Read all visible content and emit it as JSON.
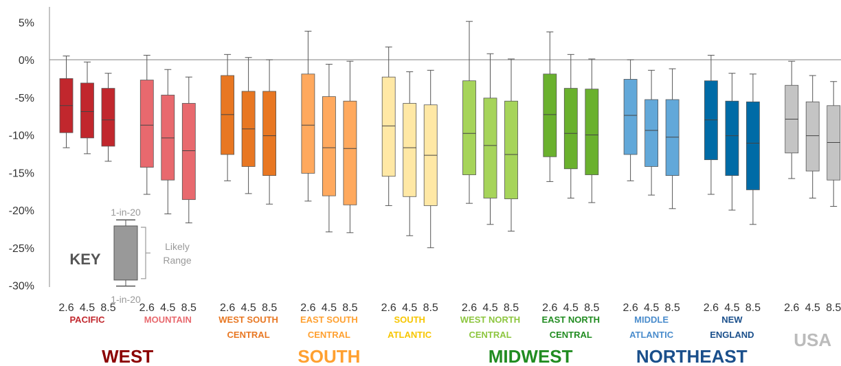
{
  "chart_data": {
    "type": "boxplot",
    "ylim": [
      -30,
      7
    ],
    "y_ticks": [
      5,
      0,
      -5,
      -10,
      -15,
      -20,
      -25,
      -30
    ],
    "y_tick_labels": [
      "5%",
      "0%",
      "-5%",
      "-10%",
      "-15%",
      "-20%",
      "-25%",
      "-30%"
    ],
    "scenarios": [
      "2.6",
      "4.5",
      "8.5"
    ],
    "regions": [
      {
        "name": "PACIFIC",
        "lines": [
          "PACIFIC"
        ],
        "color": "#c1272d",
        "label_color": "#c1272d",
        "boxes": [
          {
            "scenario": "2.6",
            "whisker_high": 0.5,
            "q3": -2.5,
            "median": -6.1,
            "q1": -9.7,
            "whisker_low": -11.7
          },
          {
            "scenario": "4.5",
            "whisker_high": -0.3,
            "q3": -3.1,
            "median": -6.9,
            "q1": -10.4,
            "whisker_low": -12.5
          },
          {
            "scenario": "8.5",
            "whisker_high": -1.8,
            "q3": -3.8,
            "median": -8.0,
            "q1": -11.5,
            "whisker_low": -13.5
          }
        ]
      },
      {
        "name": "MOUNTAIN",
        "lines": [
          "MOUNTAIN"
        ],
        "color": "#e8696e",
        "label_color": "#e8696e",
        "boxes": [
          {
            "scenario": "2.6",
            "whisker_high": 0.6,
            "q3": -2.7,
            "median": -8.7,
            "q1": -14.3,
            "whisker_low": -17.9
          },
          {
            "scenario": "4.5",
            "whisker_high": -1.3,
            "q3": -4.7,
            "median": -10.4,
            "q1": -16.0,
            "whisker_low": -20.5
          },
          {
            "scenario": "8.5",
            "whisker_high": -2.3,
            "q3": -5.8,
            "median": -12.1,
            "q1": -18.6,
            "whisker_low": -21.7
          }
        ]
      },
      {
        "name": "WEST SOUTH CENTRAL",
        "lines": [
          "WEST SOUTH",
          "CENTRAL"
        ],
        "color": "#e87722",
        "label_color": "#e87722",
        "boxes": [
          {
            "scenario": "2.6",
            "whisker_high": 0.7,
            "q3": -2.1,
            "median": -7.3,
            "q1": -12.6,
            "whisker_low": -16.1
          },
          {
            "scenario": "4.5",
            "whisker_high": 0.3,
            "q3": -4.2,
            "median": -9.2,
            "q1": -14.2,
            "whisker_low": -17.8
          },
          {
            "scenario": "8.5",
            "whisker_high": 0.0,
            "q3": -4.2,
            "median": -10.1,
            "q1": -15.4,
            "whisker_low": -19.2
          }
        ]
      },
      {
        "name": "EAST SOUTH CENTRAL",
        "lines": [
          "EAST SOUTH",
          "CENTRAL"
        ],
        "color": "#ffa95e",
        "label_color": "#ffa030",
        "boxes": [
          {
            "scenario": "2.6",
            "whisker_high": 3.8,
            "q3": -1.9,
            "median": -8.7,
            "q1": -15.1,
            "whisker_low": -18.8
          },
          {
            "scenario": "4.5",
            "whisker_high": -0.6,
            "q3": -4.9,
            "median": -11.7,
            "q1": -18.1,
            "whisker_low": -22.9
          },
          {
            "scenario": "8.5",
            "whisker_high": -0.2,
            "q3": -5.5,
            "median": -11.8,
            "q1": -19.3,
            "whisker_low": -23.0
          }
        ]
      },
      {
        "name": "SOUTH ATLANTIC",
        "lines": [
          "SOUTH",
          "ATLANTIC"
        ],
        "color": "#ffe8a5",
        "label_color": "#f7c600",
        "boxes": [
          {
            "scenario": "2.6",
            "whisker_high": 1.7,
            "q3": -2.3,
            "median": -8.8,
            "q1": -15.5,
            "whisker_low": -19.4
          },
          {
            "scenario": "4.5",
            "whisker_high": -1.6,
            "q3": -5.8,
            "median": -11.7,
            "q1": -18.2,
            "whisker_low": -23.4
          },
          {
            "scenario": "8.5",
            "whisker_high": -1.4,
            "q3": -6.0,
            "median": -12.7,
            "q1": -19.4,
            "whisker_low": -25.0
          }
        ]
      },
      {
        "name": "WEST NORTH CENTRAL",
        "lines": [
          "WEST NORTH",
          "CENTRAL"
        ],
        "color": "#a6d45a",
        "label_color": "#8dc63f",
        "boxes": [
          {
            "scenario": "2.6",
            "whisker_high": 5.1,
            "q3": -2.8,
            "median": -9.8,
            "q1": -15.3,
            "whisker_low": -19.1
          },
          {
            "scenario": "4.5",
            "whisker_high": 0.8,
            "q3": -5.1,
            "median": -11.4,
            "q1": -18.4,
            "whisker_low": -21.9
          },
          {
            "scenario": "8.5",
            "whisker_high": 0.1,
            "q3": -5.5,
            "median": -12.6,
            "q1": -18.5,
            "whisker_low": -22.8
          }
        ]
      },
      {
        "name": "EAST NORTH CENTRAL",
        "lines": [
          "EAST NORTH",
          "CENTRAL"
        ],
        "color": "#6ab12e",
        "label_color": "#218c21",
        "boxes": [
          {
            "scenario": "2.6",
            "whisker_high": 3.7,
            "q3": -1.9,
            "median": -7.3,
            "q1": -12.9,
            "whisker_low": -16.2
          },
          {
            "scenario": "4.5",
            "whisker_high": 0.7,
            "q3": -3.8,
            "median": -9.8,
            "q1": -14.5,
            "whisker_low": -18.4
          },
          {
            "scenario": "8.5",
            "whisker_high": 0.1,
            "q3": -3.9,
            "median": -10.0,
            "q1": -15.3,
            "whisker_low": -19.0
          }
        ]
      },
      {
        "name": "MIDDLE ATLANTIC",
        "lines": [
          "MIDDLE",
          "ATLANTIC"
        ],
        "color": "#62a8d9",
        "label_color": "#4a8ccc",
        "boxes": [
          {
            "scenario": "2.6",
            "whisker_high": 0.0,
            "q3": -2.6,
            "median": -7.4,
            "q1": -12.6,
            "whisker_low": -16.1
          },
          {
            "scenario": "4.5",
            "whisker_high": -1.4,
            "q3": -5.3,
            "median": -9.4,
            "q1": -14.2,
            "whisker_low": -18.0
          },
          {
            "scenario": "8.5",
            "whisker_high": -1.2,
            "q3": -5.3,
            "median": -10.3,
            "q1": -15.4,
            "whisker_low": -19.8
          }
        ]
      },
      {
        "name": "NEW ENGLAND",
        "lines": [
          "NEW",
          "ENGLAND"
        ],
        "color": "#006ba6",
        "label_color": "#1a4f8b",
        "boxes": [
          {
            "scenario": "2.6",
            "whisker_high": 0.6,
            "q3": -2.8,
            "median": -8.0,
            "q1": -13.3,
            "whisker_low": -17.9
          },
          {
            "scenario": "4.5",
            "whisker_high": -1.8,
            "q3": -5.5,
            "median": -10.1,
            "q1": -15.4,
            "whisker_low": -20.0
          },
          {
            "scenario": "8.5",
            "whisker_high": -1.9,
            "q3": -5.6,
            "median": -11.1,
            "q1": -17.3,
            "whisker_low": -21.9
          }
        ]
      },
      {
        "name": "USA",
        "lines": [
          "USA"
        ],
        "color": "#c4c4c4",
        "label_color": "#bbbbbb",
        "big_label": true,
        "boxes": [
          {
            "scenario": "2.6",
            "whisker_high": -0.2,
            "q3": -3.4,
            "median": -7.9,
            "q1": -12.4,
            "whisker_low": -15.8
          },
          {
            "scenario": "4.5",
            "whisker_high": -2.1,
            "q3": -5.6,
            "median": -10.1,
            "q1": -14.8,
            "whisker_low": -18.4
          },
          {
            "scenario": "8.5",
            "whisker_high": -2.9,
            "q3": -6.1,
            "median": -11.0,
            "q1": -16.0,
            "whisker_low": -19.5
          }
        ]
      }
    ],
    "groups": [
      {
        "name": "WEST",
        "color": "#8b0000",
        "regions": [
          0,
          1
        ]
      },
      {
        "name": "SOUTH",
        "color": "#ffa030",
        "regions": [
          2,
          3,
          4
        ]
      },
      {
        "name": "MIDWEST",
        "color": "#218c21",
        "regions": [
          5,
          6
        ]
      },
      {
        "name": "NORTHEAST",
        "color": "#1a4f8b",
        "regions": [
          7,
          8
        ]
      }
    ],
    "key": {
      "title": "KEY",
      "top_label": "1-in-20",
      "bottom_label": "1-in-20",
      "range_line1": "Likely",
      "range_line2": "Range",
      "color": "#999999",
      "whisker_high": -21.3,
      "q3": -22.1,
      "q1": -29.3,
      "whisker_low": -30.1
    }
  }
}
